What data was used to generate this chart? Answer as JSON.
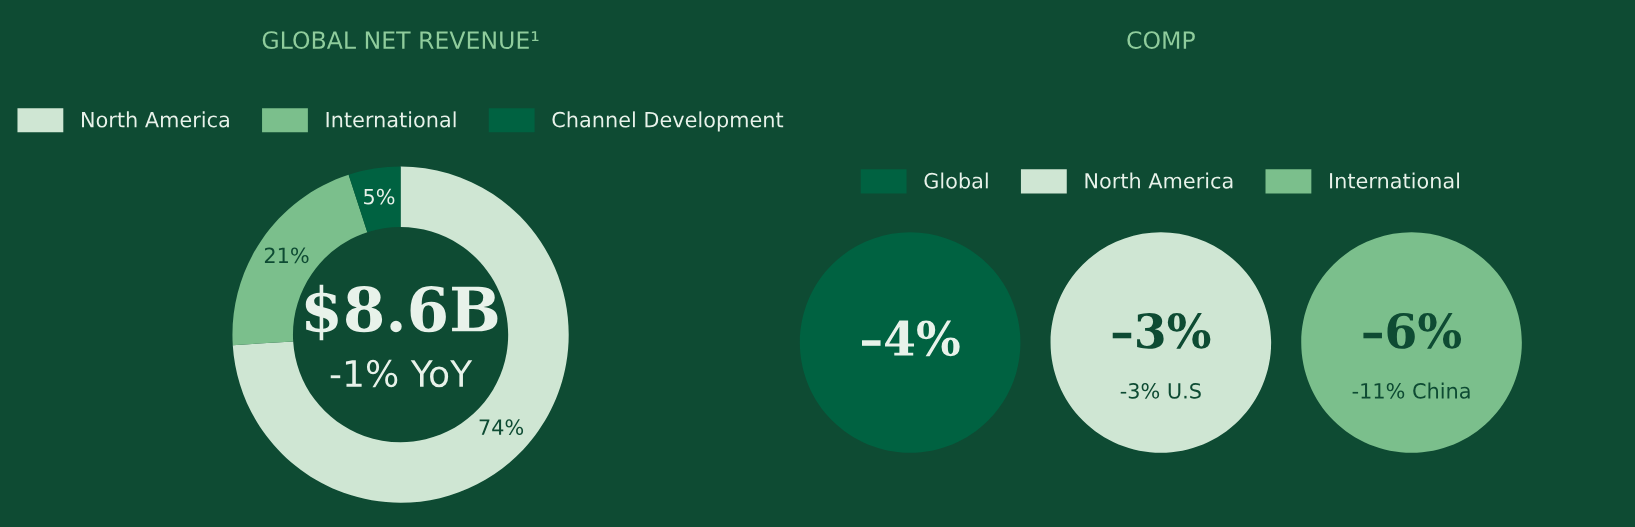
{
  "chart_data": [
    {
      "type": "donut",
      "title": "GLOBAL NET REVENUE¹",
      "categories": [
        "North America",
        "International",
        "Channel Development"
      ],
      "values": [
        74,
        21,
        5
      ],
      "colors": [
        "#cfe6d3",
        "#7bbf8c",
        "#006241"
      ],
      "value_labels": [
        "74%",
        "21%",
        "5%"
      ],
      "annotations": [
        "$8.6B",
        "-1% YoY"
      ],
      "legend": "top"
    },
    {
      "type": "other",
      "title": "COMP",
      "series": [
        {
          "name": "Global",
          "color": "#006241",
          "values": [
            -4
          ],
          "value_labels": [
            "–4%"
          ]
        },
        {
          "name": "North America",
          "color": "#cfe6d3",
          "values": [
            -3
          ],
          "value_labels": [
            "–3%"
          ]
        },
        {
          "name": "International",
          "color": "#7bbf8c",
          "values": [
            -6
          ],
          "value_labels": [
            "–6%"
          ]
        }
      ],
      "annotations": [
        null,
        "-3% U.S",
        "-11% China"
      ],
      "legend": "top"
    }
  ]
}
